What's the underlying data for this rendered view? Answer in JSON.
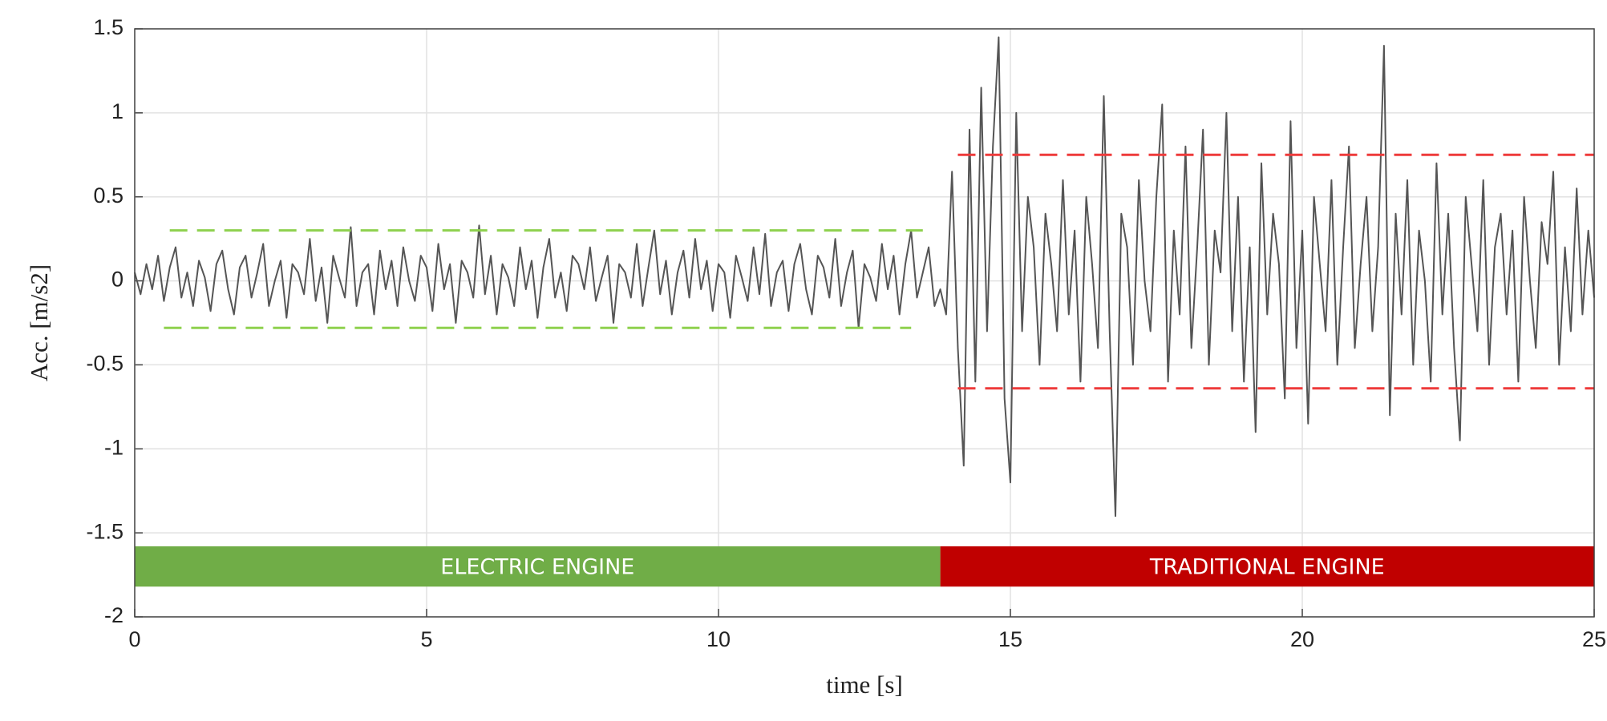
{
  "chart_data": {
    "type": "line",
    "xlabel": "time [s]",
    "ylabel": "Acc. [m/s2]",
    "xlim": [
      0,
      25
    ],
    "ylim": [
      -2,
      1.5
    ],
    "xticks": [
      0,
      5,
      10,
      15,
      20,
      25
    ],
    "yticks": [
      -2,
      -1.5,
      -1,
      -0.5,
      0,
      0.5,
      1,
      1.5
    ],
    "grid": true,
    "color": "#555555",
    "x": [
      0,
      0.1,
      0.2,
      0.3,
      0.4,
      0.5,
      0.6,
      0.7,
      0.8,
      0.9,
      1,
      1.1,
      1.2,
      1.3,
      1.4,
      1.5,
      1.6,
      1.7,
      1.8,
      1.9,
      2,
      2.1,
      2.2,
      2.3,
      2.4,
      2.5,
      2.6,
      2.7,
      2.8,
      2.9,
      3,
      3.1,
      3.2,
      3.3,
      3.4,
      3.5,
      3.6,
      3.7,
      3.8,
      3.9,
      4,
      4.1,
      4.2,
      4.3,
      4.4,
      4.5,
      4.6,
      4.7,
      4.8,
      4.9,
      5,
      5.1,
      5.2,
      5.3,
      5.4,
      5.5,
      5.6,
      5.7,
      5.8,
      5.9,
      6,
      6.1,
      6.2,
      6.3,
      6.4,
      6.5,
      6.6,
      6.7,
      6.8,
      6.9,
      7,
      7.1,
      7.2,
      7.3,
      7.4,
      7.5,
      7.6,
      7.7,
      7.8,
      7.9,
      8,
      8.1,
      8.2,
      8.3,
      8.4,
      8.5,
      8.6,
      8.7,
      8.8,
      8.9,
      9,
      9.1,
      9.2,
      9.3,
      9.4,
      9.5,
      9.6,
      9.7,
      9.8,
      9.9,
      10,
      10.1,
      10.2,
      10.3,
      10.4,
      10.5,
      10.6,
      10.7,
      10.8,
      10.9,
      11,
      11.1,
      11.2,
      11.3,
      11.4,
      11.5,
      11.6,
      11.7,
      11.8,
      11.9,
      12,
      12.1,
      12.2,
      12.3,
      12.4,
      12.5,
      12.6,
      12.7,
      12.8,
      12.9,
      13,
      13.1,
      13.2,
      13.3,
      13.4,
      13.5,
      13.6,
      13.7,
      13.8,
      13.9,
      14,
      14.1,
      14.2,
      14.3,
      14.4,
      14.5,
      14.6,
      14.7,
      14.8,
      14.9,
      15,
      15.1,
      15.2,
      15.3,
      15.4,
      15.5,
      15.6,
      15.7,
      15.8,
      15.9,
      16,
      16.1,
      16.2,
      16.3,
      16.4,
      16.5,
      16.6,
      16.7,
      16.8,
      16.9,
      17,
      17.1,
      17.2,
      17.3,
      17.4,
      17.5,
      17.6,
      17.7,
      17.8,
      17.9,
      18,
      18.1,
      18.2,
      18.3,
      18.4,
      18.5,
      18.6,
      18.7,
      18.8,
      18.9,
      19,
      19.1,
      19.2,
      19.3,
      19.4,
      19.5,
      19.6,
      19.7,
      19.8,
      19.9,
      20,
      20.1,
      20.2,
      20.3,
      20.4,
      20.5,
      20.6,
      20.7,
      20.8,
      20.9,
      21,
      21.1,
      21.2,
      21.3,
      21.4,
      21.5,
      21.6,
      21.7,
      21.8,
      21.9,
      22,
      22.1,
      22.2,
      22.3,
      22.4,
      22.5,
      22.6,
      22.7,
      22.8,
      22.9,
      23,
      23.1,
      23.2,
      23.3,
      23.4,
      23.5,
      23.6,
      23.7,
      23.8,
      23.9,
      24,
      24.1,
      24.2,
      24.3,
      24.4,
      24.5,
      24.6,
      24.7,
      24.8,
      24.9,
      25
    ],
    "values": [
      0.05,
      -0.08,
      0.1,
      -0.05,
      0.15,
      -0.12,
      0.08,
      0.2,
      -0.1,
      0.05,
      -0.15,
      0.12,
      0.02,
      -0.18,
      0.1,
      0.18,
      -0.05,
      -0.2,
      0.08,
      0.15,
      -0.1,
      0.05,
      0.22,
      -0.15,
      0,
      0.12,
      -0.22,
      0.1,
      0.05,
      -0.08,
      0.25,
      -0.12,
      0.08,
      -0.25,
      0.15,
      0.02,
      -0.1,
      0.32,
      -0.15,
      0.05,
      0.1,
      -0.2,
      0.18,
      -0.05,
      0.12,
      -0.15,
      0.2,
      0,
      -0.12,
      0.15,
      0.08,
      -0.18,
      0.22,
      -0.05,
      0.1,
      -0.25,
      0.12,
      0.05,
      -0.1,
      0.33,
      -0.08,
      0.15,
      -0.2,
      0.1,
      0.02,
      -0.15,
      0.2,
      -0.05,
      0.12,
      -0.22,
      0.08,
      0.25,
      -0.1,
      0.05,
      -0.18,
      0.15,
      0.1,
      -0.05,
      0.2,
      -0.12,
      0.02,
      0.15,
      -0.25,
      0.1,
      0.05,
      -0.1,
      0.22,
      -0.15,
      0.08,
      0.3,
      -0.08,
      0.12,
      -0.2,
      0.05,
      0.18,
      -0.1,
      0.25,
      -0.05,
      0.12,
      -0.18,
      0.1,
      0.05,
      -0.22,
      0.15,
      0.02,
      -0.12,
      0.2,
      -0.08,
      0.28,
      -0.15,
      0.05,
      0.12,
      -0.18,
      0.1,
      0.22,
      -0.05,
      -0.2,
      0.15,
      0.08,
      -0.1,
      0.25,
      -0.15,
      0.05,
      0.18,
      -0.28,
      0.1,
      0.02,
      -0.12,
      0.22,
      -0.05,
      0.15,
      -0.2,
      0.1,
      0.3,
      -0.1,
      0.05,
      0.2,
      -0.15,
      -0.05,
      -0.2,
      0.65,
      -0.4,
      -1.1,
      0.9,
      -0.6,
      1.15,
      -0.3,
      0.8,
      1.45,
      -0.7,
      -1.2,
      1,
      -0.3,
      0.5,
      0.2,
      -0.5,
      0.4,
      0.1,
      -0.3,
      0.6,
      -0.2,
      0.3,
      -0.6,
      0.5,
      0.1,
      -0.4,
      1.1,
      -0.3,
      -1.4,
      0.4,
      0.2,
      -0.5,
      0.6,
      0,
      -0.3,
      0.5,
      1.05,
      -0.6,
      0.3,
      -0.2,
      0.8,
      -0.4,
      0.2,
      0.9,
      -0.5,
      0.3,
      0.05,
      1,
      -0.3,
      0.5,
      -0.6,
      0.2,
      -0.9,
      0.7,
      -0.2,
      0.4,
      0.1,
      -0.7,
      0.95,
      -0.4,
      0.3,
      -0.85,
      0.5,
      0.1,
      -0.3,
      0.6,
      -0.5,
      0.2,
      0.8,
      -0.4,
      0.1,
      0.5,
      -0.3,
      0.2,
      1.4,
      -0.8,
      0.4,
      -0.2,
      0.6,
      -0.5,
      0.3,
      0,
      -0.6,
      0.7,
      -0.2,
      0.4,
      -0.4,
      -0.95,
      0.5,
      0.1,
      -0.3,
      0.6,
      -0.5,
      0.2,
      0.4,
      -0.2,
      0.3,
      -0.6,
      0.5,
      0,
      -0.4,
      0.35,
      0.1,
      0.65,
      -0.5,
      0.2,
      -0.3,
      0.55,
      -0.2,
      0.3,
      -0.1
    ],
    "thresholds": [
      {
        "color": "#8fd14f",
        "y": 0.3,
        "x": [
          0.6,
          13.5
        ]
      },
      {
        "color": "#8fd14f",
        "y": -0.28,
        "x": [
          0.5,
          13.3
        ]
      },
      {
        "color": "#ee3b3b",
        "y": 0.75,
        "x": [
          14.1,
          25
        ]
      },
      {
        "color": "#ee3b3b",
        "y": -0.64,
        "x": [
          14.1,
          25
        ]
      }
    ],
    "regions": [
      {
        "label": "ELECTRIC ENGINE",
        "color": "#70ad47",
        "x": [
          0,
          13.8
        ],
        "y": [
          -1.82,
          -1.58
        ]
      },
      {
        "label": "TRADITIONAL ENGINE",
        "color": "#c00000",
        "x": [
          13.8,
          25
        ],
        "y": [
          -1.82,
          -1.58
        ]
      }
    ]
  }
}
